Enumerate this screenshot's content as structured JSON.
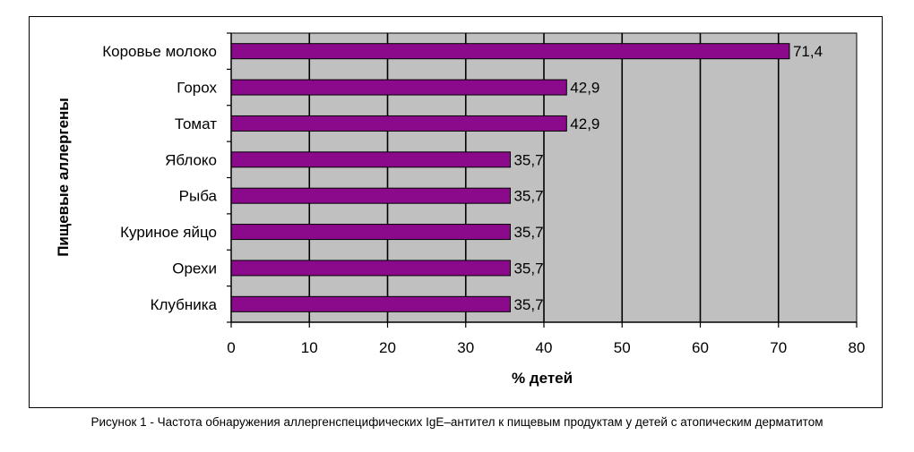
{
  "chart_data": {
    "type": "bar",
    "orientation": "horizontal",
    "categories": [
      "Коровье молоко",
      "Горох",
      "Томат",
      "Яблоко",
      "Рыба",
      "Куриное яйцо",
      "Орехи",
      "Клубника"
    ],
    "values": [
      71.4,
      42.9,
      42.9,
      35.7,
      35.7,
      35.7,
      35.7,
      35.7
    ],
    "value_labels": [
      "71,4",
      "42,9",
      "42,9",
      "35,7",
      "35,7",
      "35,7",
      "35,7",
      "35,7"
    ],
    "xlabel": "% детей",
    "ylabel": "Пищевые аллергены",
    "xlim": [
      0,
      80
    ],
    "xticks": [
      0,
      10,
      20,
      30,
      40,
      50,
      60,
      70,
      80
    ],
    "grid": "vertical",
    "bar_color": "#8B0A8B",
    "plot_background": "#C0C0C0"
  },
  "caption": "Рисунок 1 - Частота обнаружения аллергенспецифических IgE–антител к пищевым продуктам у детей с атопическим дерматитом"
}
